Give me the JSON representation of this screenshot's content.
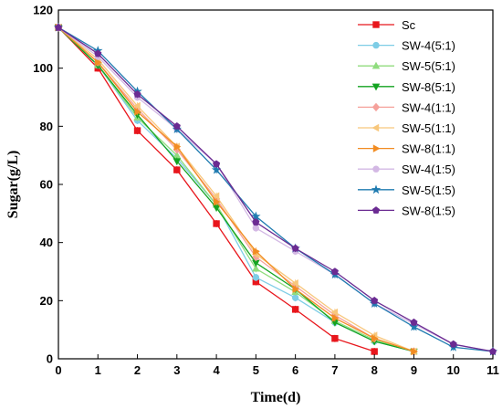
{
  "chart_data": {
    "type": "line",
    "xlabel": "Time(d)",
    "ylabel": "Sugar(g/L)",
    "xlim": [
      0,
      11
    ],
    "ylim": [
      0,
      120
    ],
    "x_ticks": [
      "0",
      "1",
      "2",
      "3",
      "4",
      "5",
      "6",
      "7",
      "8",
      "9",
      "10",
      "11"
    ],
    "y_ticks": [
      "0",
      "20",
      "40",
      "60",
      "80",
      "100",
      "120"
    ],
    "grid": false,
    "legend_position": "top-right",
    "series": [
      {
        "name": "Sc",
        "color": "#e8161c",
        "marker": "square",
        "x": [
          0,
          1,
          2,
          3,
          4,
          5,
          6,
          7,
          8
        ],
        "y": [
          114,
          100,
          78.5,
          65,
          46.5,
          26.5,
          17,
          7,
          2.5
        ]
      },
      {
        "name": "SW-4(5:1)",
        "color": "#7ecde6",
        "marker": "circle",
        "x": [
          0,
          1,
          2,
          3,
          4,
          5,
          6,
          7,
          8,
          9
        ],
        "y": [
          114,
          101,
          82,
          69,
          53,
          28,
          21,
          12.5,
          6,
          2.5
        ]
      },
      {
        "name": "SW-5(5:1)",
        "color": "#90dc7e",
        "marker": "triangle-up",
        "x": [
          0,
          1,
          2,
          3,
          4,
          5,
          6,
          7,
          8,
          9
        ],
        "y": [
          114,
          101,
          83,
          70,
          53,
          31,
          23,
          13,
          6.5,
          2.5
        ]
      },
      {
        "name": "SW-8(5:1)",
        "color": "#13a320",
        "marker": "triangle-down",
        "x": [
          0,
          1,
          2,
          3,
          4,
          5,
          6,
          7,
          8,
          9
        ],
        "y": [
          114,
          101,
          84,
          68,
          52,
          33,
          24,
          12.5,
          6,
          2.5
        ]
      },
      {
        "name": "SW-4(1:1)",
        "color": "#f5a19b",
        "marker": "diamond",
        "x": [
          0,
          1,
          2,
          3,
          4,
          5,
          6,
          7,
          8,
          9
        ],
        "y": [
          114,
          102,
          86,
          72,
          55,
          35,
          25,
          15,
          7,
          2.5
        ]
      },
      {
        "name": "SW-5(1:1)",
        "color": "#f8c77c",
        "marker": "triangle-left",
        "x": [
          0,
          1,
          2,
          3,
          4,
          5,
          6,
          7,
          8,
          9
        ],
        "y": [
          114,
          103,
          87,
          73,
          56,
          36,
          26,
          16,
          8,
          2.5
        ]
      },
      {
        "name": "SW-8(1:1)",
        "color": "#f28c22",
        "marker": "triangle-right",
        "x": [
          0,
          1,
          2,
          3,
          4,
          5,
          6,
          7,
          8,
          9
        ],
        "y": [
          114,
          102,
          85,
          73,
          54,
          37,
          24,
          14,
          7,
          2.5
        ]
      },
      {
        "name": "SW-4(1:5)",
        "color": "#d3b8e4",
        "marker": "circle",
        "x": [
          0,
          1,
          2,
          3,
          4,
          5,
          6,
          7,
          8,
          9,
          10,
          11
        ],
        "y": [
          114,
          104,
          90,
          79,
          67,
          45,
          37,
          29,
          19,
          12,
          5,
          2.5
        ]
      },
      {
        "name": "SW-5(1:5)",
        "color": "#1f7bb0",
        "marker": "star",
        "x": [
          0,
          1,
          2,
          3,
          4,
          5,
          6,
          7,
          8,
          9,
          10,
          11
        ],
        "y": [
          114,
          106,
          92,
          79,
          65,
          49,
          38,
          29,
          19,
          11,
          4,
          2.5
        ]
      },
      {
        "name": "SW-8(1:5)",
        "color": "#6b2b92",
        "marker": "pentagon",
        "x": [
          0,
          1,
          2,
          3,
          4,
          5,
          6,
          7,
          8,
          9,
          10,
          11
        ],
        "y": [
          114,
          105,
          91,
          80,
          67,
          47,
          38,
          30,
          20,
          12.5,
          5,
          2.5
        ]
      }
    ]
  }
}
